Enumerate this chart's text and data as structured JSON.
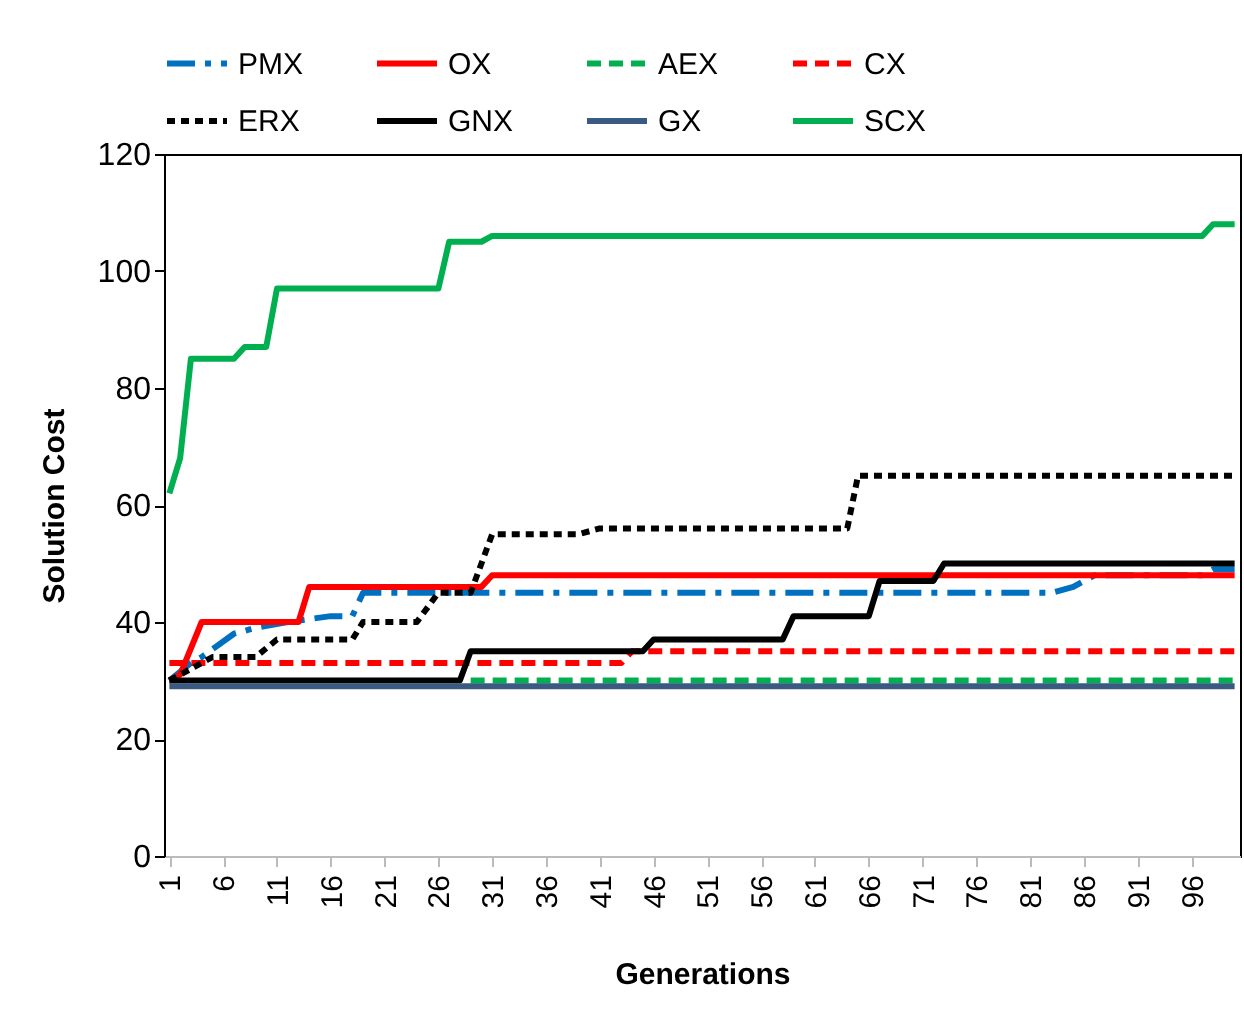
{
  "chart_data": {
    "type": "line",
    "xlabel": "Generations",
    "ylabel": "Solution Cost",
    "xlim": [
      0.5,
      100.5
    ],
    "xticks": [
      1,
      6,
      11,
      16,
      21,
      26,
      31,
      36,
      41,
      46,
      51,
      56,
      61,
      66,
      71,
      76,
      81,
      86,
      91,
      96
    ],
    "ylim": [
      0,
      120
    ],
    "yticks": [
      0,
      20,
      40,
      60,
      80,
      100,
      120
    ],
    "grid": false,
    "legend": "top",
    "marker": "none",
    "series": [
      {
        "name": "PMX",
        "color": "#0070c0",
        "line_style": "dashdot",
        "x": [
          1,
          3,
          4,
          7,
          9,
          12,
          16,
          18,
          19,
          83,
          85,
          86,
          87,
          97,
          98,
          100
        ],
        "values": [
          30,
          33,
          34,
          38,
          39,
          40,
          41,
          41,
          45,
          45,
          46,
          47,
          48,
          48,
          49,
          49
        ]
      },
      {
        "name": "OX",
        "color": "#ff0000",
        "line_style": "solid",
        "x": [
          1,
          2,
          4,
          13,
          14,
          30,
          31,
          100
        ],
        "values": [
          30,
          31,
          40,
          40,
          46,
          46,
          48,
          48
        ]
      },
      {
        "name": "AEX",
        "color": "#00b050",
        "line_style": "dashed",
        "x": [
          29,
          100
        ],
        "values": [
          30,
          30
        ]
      },
      {
        "name": "CX",
        "color": "#ff0000",
        "line_style": "dashed",
        "x": [
          1,
          43,
          44,
          100
        ],
        "values": [
          33,
          33,
          35,
          35
        ]
      },
      {
        "name": "ERX",
        "color": "#000000",
        "line_style": "dotted",
        "x": [
          1,
          3,
          5,
          9,
          11,
          18,
          19,
          24,
          26,
          29,
          31,
          39,
          41,
          64,
          65,
          100
        ],
        "values": [
          30,
          32,
          34,
          34,
          37,
          37,
          40,
          40,
          45,
          45,
          55,
          55,
          56,
          56,
          65,
          65
        ]
      },
      {
        "name": "GNX",
        "color": "#000000",
        "line_style": "solid",
        "x": [
          1,
          28,
          29,
          45,
          46,
          58,
          59,
          66,
          67,
          72,
          73,
          100
        ],
        "values": [
          30,
          30,
          35,
          35,
          37,
          37,
          41,
          41,
          47,
          47,
          50,
          50
        ]
      },
      {
        "name": "GX",
        "color": "#3b5a82",
        "line_style": "solid",
        "x": [
          1,
          100
        ],
        "values": [
          29,
          29
        ]
      },
      {
        "name": "SCX",
        "color": "#00b050",
        "line_style": "solid",
        "x": [
          1,
          2,
          3,
          7,
          8,
          10,
          11,
          26,
          27,
          30,
          31,
          97,
          98,
          100
        ],
        "values": [
          62,
          68,
          85,
          85,
          87,
          87,
          97,
          97,
          105,
          105,
          106,
          106,
          108,
          108
        ]
      }
    ]
  }
}
